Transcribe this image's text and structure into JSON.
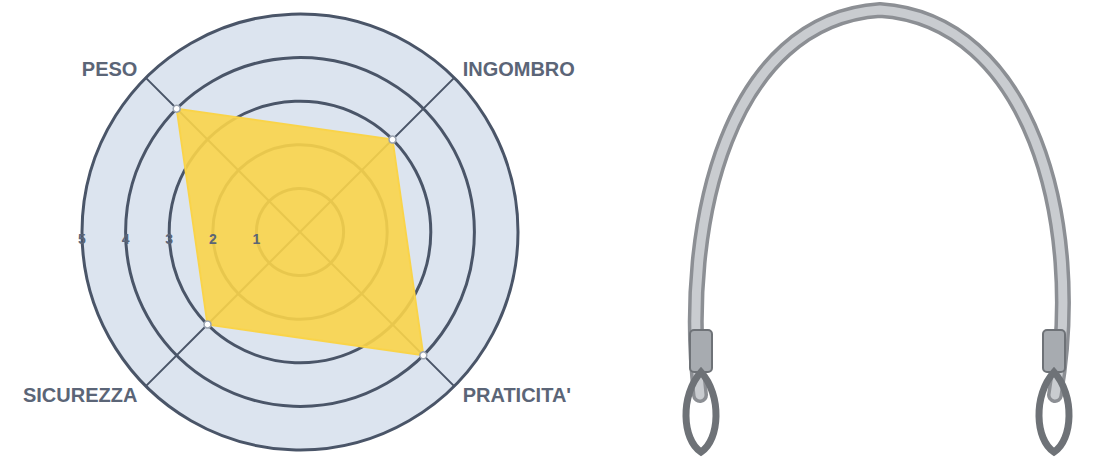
{
  "chart_data": {
    "type": "radar",
    "categories": [
      "PESO",
      "SICUREZZA",
      "PRATICITA'",
      "INGOMBRO"
    ],
    "values": [
      4,
      3,
      4,
      3
    ],
    "color": "#f9d44a",
    "ylim": [
      0,
      5
    ],
    "yticks": [
      1,
      2,
      3,
      4,
      5
    ],
    "grid": true
  }
}
